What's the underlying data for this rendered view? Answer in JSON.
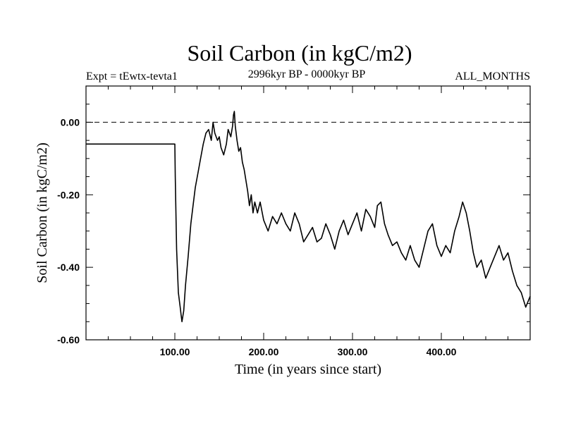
{
  "chart_data": {
    "type": "line",
    "title": "Soil Carbon (in kgC/m2)",
    "subtitle_left": "Expt = tEwtx-tevta1",
    "subtitle_center": "2996kyr BP - 0000kyr BP",
    "subtitle_right": "ALL_MONTHS",
    "xlabel": "Time (in years since start)",
    "ylabel": "Soil Carbon (in kgC/m2)",
    "xlim": [
      0,
      500
    ],
    "ylim": [
      -0.6,
      0.1
    ],
    "x_ticks": [
      100,
      200,
      300,
      400
    ],
    "x_tick_labels": [
      "100.00",
      "200.00",
      "300.00",
      "400.00"
    ],
    "y_ticks": [
      0.0,
      -0.2,
      -0.4,
      -0.6
    ],
    "y_tick_labels": [
      "0.00",
      "-0.20",
      "-0.40",
      "-0.60"
    ],
    "reference_line": {
      "y": 0.0,
      "style": "dashed"
    },
    "series": [
      {
        "name": "Soil Carbon",
        "x": [
          0,
          100,
          100.5,
          102,
          104,
          106,
          107,
          108,
          110,
          112,
          115,
          118,
          120,
          123,
          126,
          129,
          132,
          135,
          138,
          141,
          143,
          145,
          148,
          150,
          152,
          155,
          158,
          160,
          163,
          165,
          166,
          167,
          168,
          170,
          172,
          174,
          176,
          178,
          180,
          182,
          184,
          186,
          188,
          190,
          193,
          196,
          200,
          205,
          210,
          215,
          220,
          225,
          230,
          235,
          240,
          245,
          250,
          255,
          260,
          265,
          270,
          275,
          280,
          285,
          290,
          295,
          300,
          305,
          310,
          315,
          320,
          325,
          328,
          332,
          336,
          340,
          345,
          350,
          355,
          360,
          365,
          370,
          375,
          380,
          385,
          390,
          395,
          400,
          405,
          410,
          415,
          420,
          424,
          428,
          432,
          436,
          440,
          445,
          450,
          455,
          460,
          465,
          470,
          475,
          480,
          485,
          490,
          495,
          500
        ],
        "y": [
          -0.06,
          -0.06,
          -0.15,
          -0.35,
          -0.47,
          -0.51,
          -0.53,
          -0.55,
          -0.52,
          -0.45,
          -0.37,
          -0.28,
          -0.24,
          -0.18,
          -0.14,
          -0.1,
          -0.06,
          -0.03,
          -0.02,
          -0.05,
          0.0,
          -0.03,
          -0.05,
          -0.04,
          -0.07,
          -0.09,
          -0.06,
          -0.02,
          -0.04,
          -0.01,
          0.02,
          0.03,
          -0.01,
          -0.05,
          -0.08,
          -0.07,
          -0.11,
          -0.13,
          -0.16,
          -0.19,
          -0.23,
          -0.2,
          -0.25,
          -0.22,
          -0.25,
          -0.22,
          -0.27,
          -0.3,
          -0.26,
          -0.28,
          -0.25,
          -0.28,
          -0.3,
          -0.25,
          -0.28,
          -0.33,
          -0.31,
          -0.29,
          -0.33,
          -0.32,
          -0.28,
          -0.31,
          -0.35,
          -0.3,
          -0.27,
          -0.31,
          -0.28,
          -0.25,
          -0.3,
          -0.24,
          -0.26,
          -0.29,
          -0.23,
          -0.22,
          -0.28,
          -0.31,
          -0.34,
          -0.33,
          -0.36,
          -0.38,
          -0.34,
          -0.38,
          -0.4,
          -0.35,
          -0.3,
          -0.28,
          -0.34,
          -0.37,
          -0.34,
          -0.36,
          -0.3,
          -0.26,
          -0.22,
          -0.25,
          -0.3,
          -0.36,
          -0.4,
          -0.38,
          -0.43,
          -0.4,
          -0.37,
          -0.34,
          -0.38,
          -0.36,
          -0.41,
          -0.45,
          -0.47,
          -0.51,
          -0.48
        ]
      }
    ]
  }
}
